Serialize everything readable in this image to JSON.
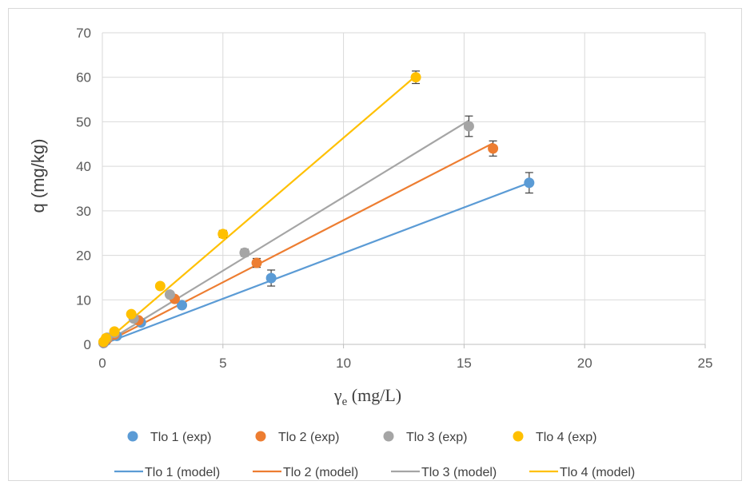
{
  "chart_data": {
    "type": "scatter",
    "title": "",
    "xlabel_symbol": "γ",
    "xlabel_subscript": "e",
    "xlabel_unit": " (mg/L)",
    "ylabel": "q (mg/kg)",
    "xlim": [
      0,
      25
    ],
    "ylim": [
      0,
      70
    ],
    "xticks": [
      0,
      5,
      10,
      15,
      20,
      25
    ],
    "yticks": [
      0,
      10,
      20,
      30,
      40,
      50,
      60,
      70
    ],
    "grid": true,
    "legend_position": "bottom",
    "series": [
      {
        "name": "Tlo 1 (exp)",
        "kind": "points",
        "color": "#5b9bd5",
        "points": [
          [
            0.05,
            0.3
          ],
          [
            0.15,
            0.8
          ],
          [
            0.6,
            1.9
          ],
          [
            1.6,
            4.9
          ],
          [
            3.3,
            8.8
          ],
          [
            7.0,
            14.9
          ],
          [
            17.7,
            36.3
          ]
        ],
        "errors": [
          0.1,
          0.2,
          0.3,
          0.5,
          0.6,
          1.8,
          2.3
        ]
      },
      {
        "name": "Tlo 2 (exp)",
        "kind": "points",
        "color": "#ed7d31",
        "points": [
          [
            0.05,
            0.4
          ],
          [
            0.2,
            1.2
          ],
          [
            0.5,
            2.2
          ],
          [
            1.5,
            5.4
          ],
          [
            3.0,
            10.2
          ],
          [
            6.4,
            18.3
          ],
          [
            16.2,
            44.0
          ]
        ],
        "errors": [
          0.1,
          0.2,
          0.3,
          0.5,
          0.6,
          1.0,
          1.7
        ]
      },
      {
        "name": "Tlo 3 (exp)",
        "kind": "points",
        "color": "#a5a5a5",
        "points": [
          [
            0.05,
            0.5
          ],
          [
            0.2,
            1.5
          ],
          [
            0.5,
            2.6
          ],
          [
            1.3,
            5.8
          ],
          [
            2.8,
            11.2
          ],
          [
            5.9,
            20.6
          ],
          [
            15.2,
            49.0
          ]
        ],
        "errors": [
          0.1,
          0.2,
          0.3,
          0.5,
          0.6,
          0.8,
          2.3
        ]
      },
      {
        "name": "Tlo 4 (exp)",
        "kind": "points",
        "color": "#ffc000",
        "points": [
          [
            0.05,
            0.6
          ],
          [
            0.15,
            1.4
          ],
          [
            0.5,
            2.9
          ],
          [
            1.2,
            6.8
          ],
          [
            2.4,
            13.1
          ],
          [
            5.0,
            24.8
          ],
          [
            13.0,
            60.0
          ]
        ],
        "errors": [
          0.1,
          0.2,
          0.3,
          0.4,
          0.6,
          0.8,
          1.4
        ]
      },
      {
        "name": "Tlo 1 (model)",
        "kind": "line",
        "color": "#5b9bd5",
        "points": [
          [
            0,
            0
          ],
          [
            17.7,
            36.3
          ]
        ]
      },
      {
        "name": "Tlo 2 (model)",
        "kind": "line",
        "color": "#ed7d31",
        "points": [
          [
            0,
            0
          ],
          [
            16.2,
            45.2
          ]
        ]
      },
      {
        "name": "Tlo 3 (model)",
        "kind": "line",
        "color": "#a5a5a5",
        "points": [
          [
            0,
            0
          ],
          [
            15.2,
            50.3
          ]
        ]
      },
      {
        "name": "Tlo 4 (model)",
        "kind": "line",
        "color": "#ffc000",
        "points": [
          [
            0,
            0
          ],
          [
            13.0,
            60.3
          ]
        ]
      }
    ]
  }
}
